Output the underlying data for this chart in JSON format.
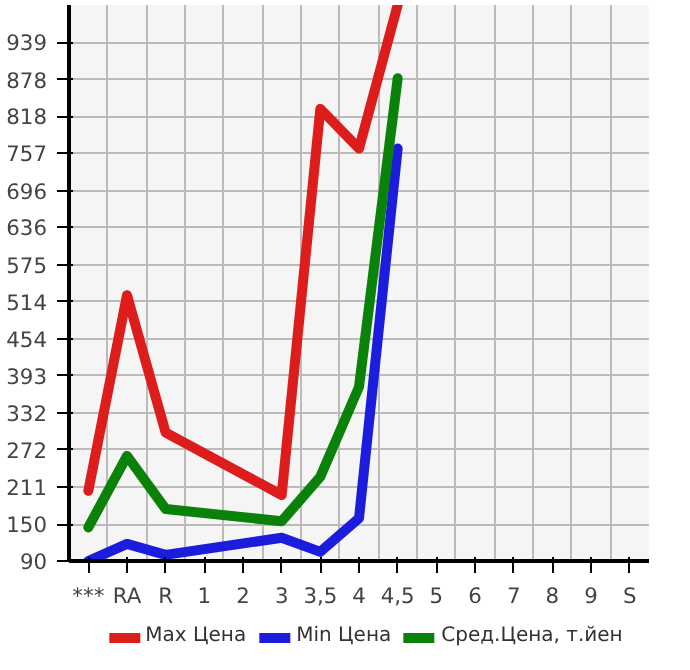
{
  "chart_data": {
    "type": "line",
    "categories": [
      "***",
      "RA",
      "R",
      "1",
      "2",
      "3",
      "3,5",
      "4",
      "4,5",
      "5",
      "6",
      "7",
      "8",
      "9",
      "S"
    ],
    "ylim": [
      90,
      1000
    ],
    "yticks": [
      90,
      150,
      211,
      272,
      332,
      393,
      454,
      514,
      575,
      636,
      696,
      757,
      818,
      878,
      939
    ],
    "grid": true,
    "legend": "bottom",
    "line_style": "solid",
    "series": [
      {
        "name": "Max Цена",
        "color": "#dd1c1c",
        "values": [
          205,
          525,
          300,
          null,
          null,
          198,
          830,
          765,
          1000,
          null,
          null,
          null,
          null,
          null,
          null
        ]
      },
      {
        "name": "Min Цена",
        "color": "#1c1cdd",
        "values": [
          90,
          118,
          100,
          null,
          null,
          128,
          105,
          160,
          765,
          null,
          null,
          null,
          null,
          null,
          null
        ]
      },
      {
        "name": "Сред.Цена, т.йен",
        "color": "#0a820a",
        "values": [
          145,
          262,
          175,
          null,
          null,
          155,
          228,
          375,
          880,
          null,
          null,
          null,
          null,
          null,
          null
        ]
      }
    ]
  }
}
